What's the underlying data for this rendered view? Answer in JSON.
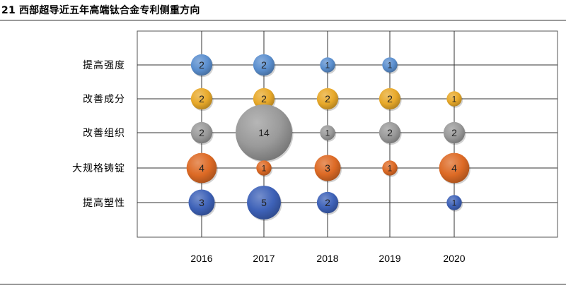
{
  "figure": {
    "title": "21 西部超导近五年高端钛合金专利侧重方向"
  },
  "chart_data": {
    "type": "bubble",
    "title": "",
    "x_categories": [
      "2016",
      "2017",
      "2018",
      "2019",
      "2020"
    ],
    "y_categories": [
      "提高强度",
      "改善成分",
      "改善组织",
      "大规格铸锭",
      "提高塑性"
    ],
    "grid": true,
    "series": [
      {
        "category": "提高强度",
        "color": "#5b8fcf",
        "values": {
          "2016": 2,
          "2017": 2,
          "2018": 1,
          "2019": 1
        }
      },
      {
        "category": "改善成分",
        "color": "#e8a92a",
        "values": {
          "2016": 2,
          "2017": 2,
          "2018": 2,
          "2019": 2,
          "2020": 1
        }
      },
      {
        "category": "改善组织",
        "color": "#9a9a9a",
        "values": {
          "2016": 2,
          "2017": 14,
          "2018": 1,
          "2019": 2,
          "2020": 2
        }
      },
      {
        "category": "大规格铸锭",
        "color": "#dd6a25",
        "values": {
          "2016": 4,
          "2017": 1,
          "2018": 3,
          "2019": 1,
          "2020": 4
        }
      },
      {
        "category": "提高塑性",
        "color": "#3e62b8",
        "values": {
          "2016": 3,
          "2017": 5,
          "2018": 2,
          "2020": 1
        }
      }
    ]
  }
}
